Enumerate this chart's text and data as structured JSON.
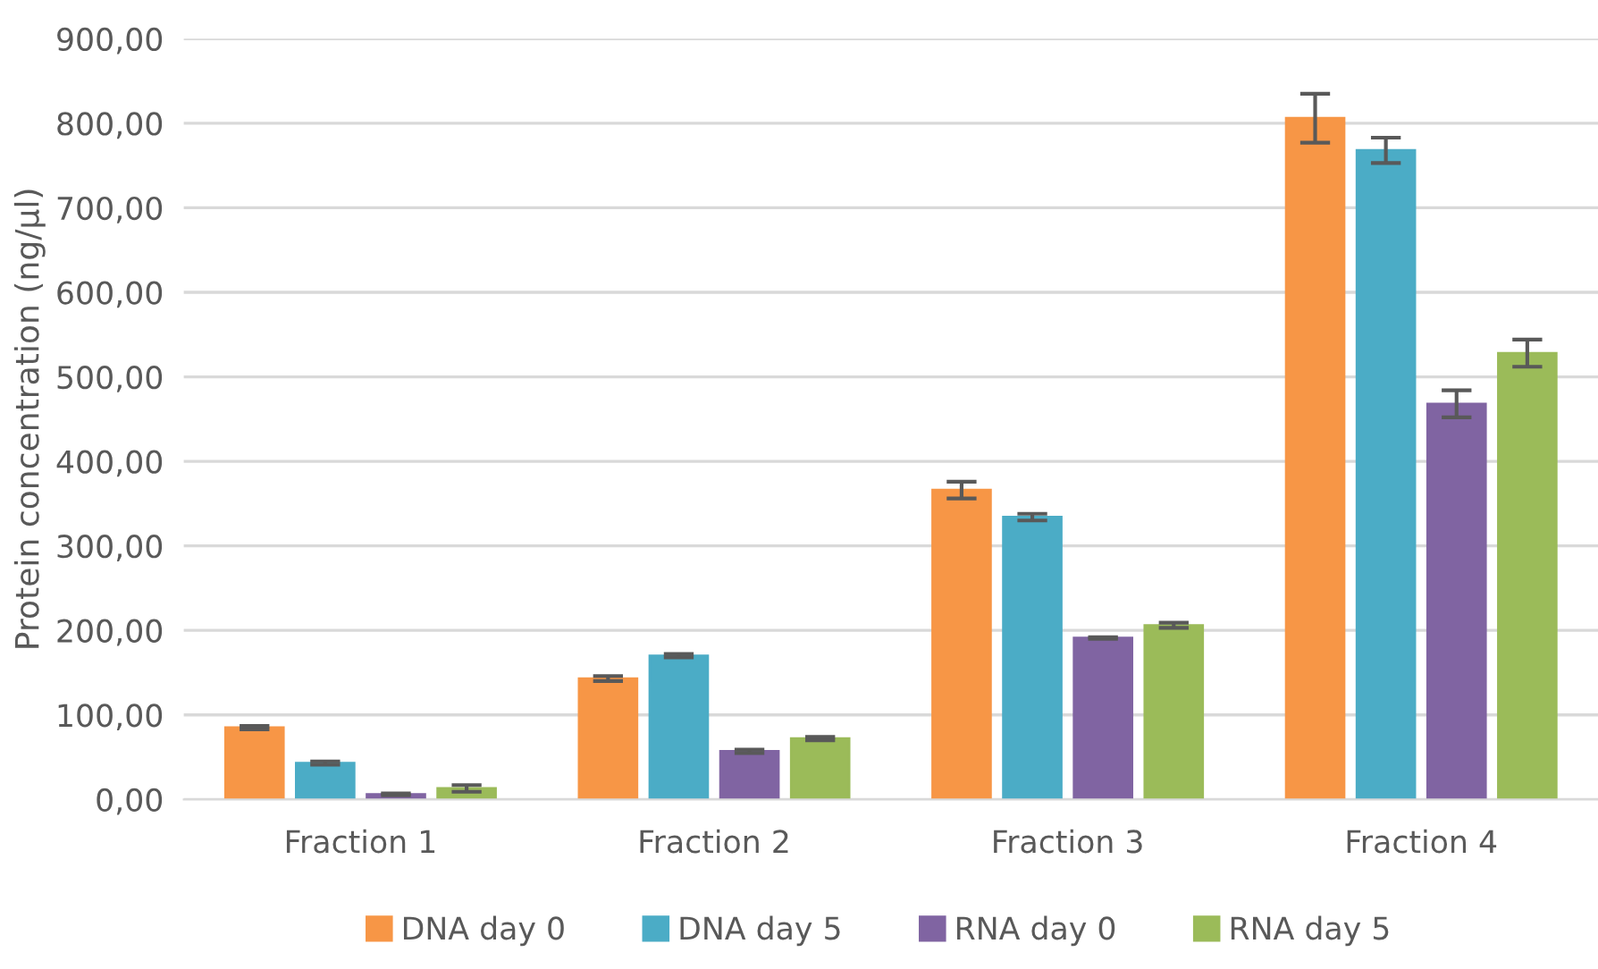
{
  "chart_data": {
    "type": "bar",
    "ylabel": "Protein concentration (ng/µl)",
    "categories": [
      "Fraction 1",
      "Fraction 2",
      "Fraction 3",
      "Fraction 4"
    ],
    "series": [
      {
        "name": "DNA day 0",
        "color": "#f79646",
        "values": [
          85,
          143,
          366,
          806
        ],
        "errors": [
          2,
          3,
          10,
          29
        ]
      },
      {
        "name": "DNA day 5",
        "color": "#4bacc6",
        "values": [
          43,
          170,
          334,
          768
        ],
        "errors": [
          2,
          2,
          4,
          15
        ]
      },
      {
        "name": "RNA day 0",
        "color": "#8064a2",
        "values": [
          6,
          57,
          191,
          468
        ],
        "errors": [
          1,
          2,
          1,
          16
        ]
      },
      {
        "name": "RNA day 5",
        "color": "#9bbb59",
        "values": [
          13,
          72,
          206,
          528
        ],
        "errors": [
          4,
          2,
          3,
          16
        ]
      }
    ],
    "ylim": [
      0,
      900
    ],
    "yticks": [
      {
        "value": 0,
        "label": "0,00"
      },
      {
        "value": 100,
        "label": "100,00"
      },
      {
        "value": 200,
        "label": "200,00"
      },
      {
        "value": 300,
        "label": "300,00"
      },
      {
        "value": 400,
        "label": "400,00"
      },
      {
        "value": 500,
        "label": "500,00"
      },
      {
        "value": 600,
        "label": "600,00"
      },
      {
        "value": 700,
        "label": "700,00"
      },
      {
        "value": 800,
        "label": "800,00"
      },
      {
        "value": 900,
        "label": "900,00"
      }
    ],
    "grid": "y",
    "legend": "bottom"
  }
}
